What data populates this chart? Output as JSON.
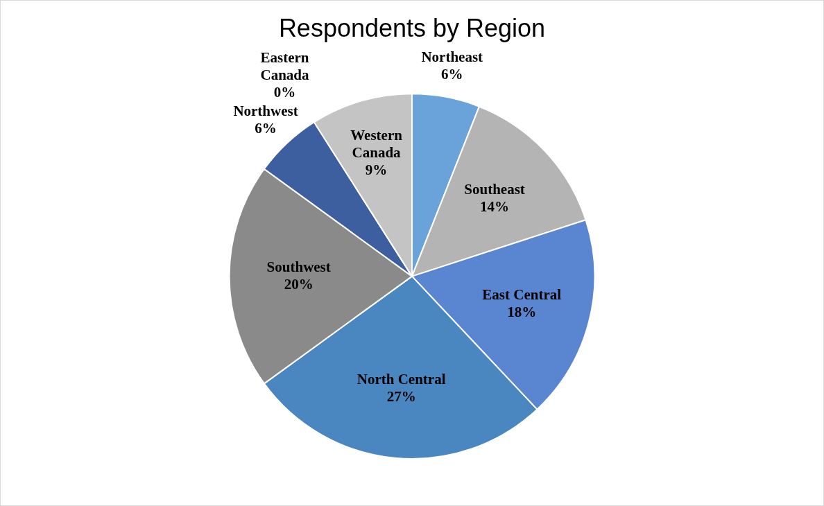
{
  "chart_data": {
    "type": "pie",
    "title": "Respondents by Region",
    "categories": [
      "Northeast",
      "Southeast",
      "East Central",
      "North Central",
      "Southwest",
      "Northwest",
      "Eastern Canada",
      "Western Canada"
    ],
    "values": [
      6,
      14,
      18,
      27,
      20,
      6,
      0,
      9
    ],
    "value_labels": [
      "6%",
      "14%",
      "18%",
      "27%",
      "20%",
      "6%",
      "0%",
      "9%"
    ],
    "colors": [
      "#6aa3da",
      "#b4b4b4",
      "#5a85d0",
      "#4a86c0",
      "#8a8a8a",
      "#3d5f9f",
      "#9a9a9a",
      "#c4c4c4"
    ],
    "legend": false
  }
}
